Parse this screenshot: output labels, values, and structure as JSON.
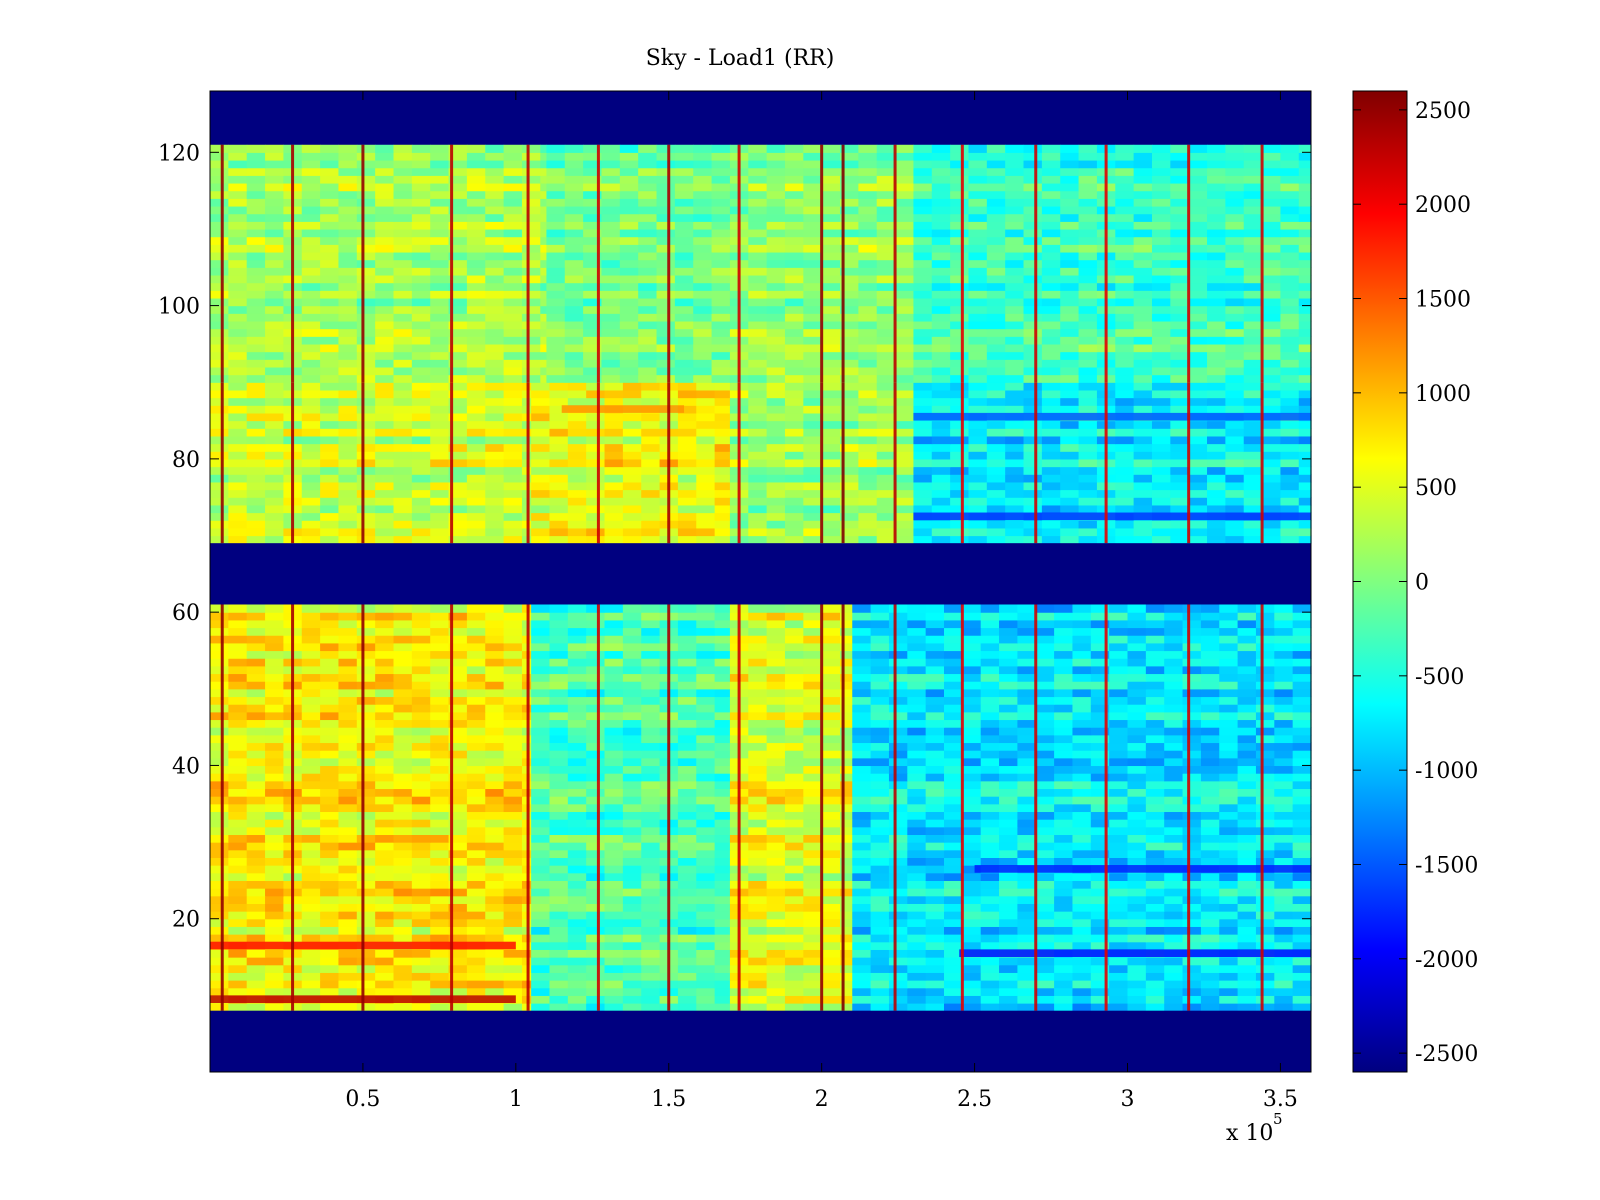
{
  "chart_data": {
    "type": "heatmap",
    "title": "Sky - Load1 (RR)",
    "xlabel": "",
    "ylabel": "",
    "x_exponent_label": "x 10",
    "x_exponent_power": "5",
    "xlim": [
      0,
      360000
    ],
    "ylim": [
      0,
      128
    ],
    "x_ticks": [
      50000,
      100000,
      150000,
      200000,
      250000,
      300000,
      350000
    ],
    "x_tick_labels": [
      "0.5",
      "1",
      "1.5",
      "2",
      "2.5",
      "3",
      "3.5"
    ],
    "y_ticks": [
      20,
      40,
      60,
      80,
      100,
      120
    ],
    "y_tick_labels": [
      "20",
      "40",
      "60",
      "80",
      "100",
      "120"
    ],
    "colormap": "jet",
    "clim": [
      -2600,
      2600
    ],
    "colorbar_ticks": [
      2500,
      2000,
      1500,
      1000,
      500,
      0,
      -500,
      -1000,
      -1500,
      -2000,
      -2500
    ],
    "colorbar_tick_labels": [
      "2500",
      "2000",
      "1500",
      "1000",
      "500",
      "0",
      "-500",
      "-1000",
      "-1500",
      "-2000",
      "-2500"
    ],
    "masked_rows": [
      [
        0,
        8
      ],
      [
        61,
        69
      ],
      [
        121,
        128
      ]
    ],
    "masked_value": -2600,
    "row_bands": [
      {
        "rows": [
          8,
          61
        ],
        "x_segments": [
          {
            "x": [
              0,
              105000
            ],
            "mean": 700
          },
          {
            "x": [
              105000,
              170000
            ],
            "mean": -250
          },
          {
            "x": [
              170000,
              210000
            ],
            "mean": 500
          },
          {
            "x": [
              210000,
              360000
            ],
            "mean": -750
          }
        ]
      },
      {
        "rows": [
          69,
          90
        ],
        "x_segments": [
          {
            "x": [
              0,
              105000
            ],
            "mean": 400
          },
          {
            "x": [
              105000,
              170000
            ],
            "mean": 600
          },
          {
            "x": [
              170000,
              230000
            ],
            "mean": 150
          },
          {
            "x": [
              230000,
              360000
            ],
            "mean": -700
          }
        ]
      },
      {
        "rows": [
          90,
          121
        ],
        "x_segments": [
          {
            "x": [
              0,
              110000
            ],
            "mean": 200
          },
          {
            "x": [
              110000,
              170000
            ],
            "mean": -50
          },
          {
            "x": [
              170000,
              230000
            ],
            "mean": 100
          },
          {
            "x": [
              230000,
              360000
            ],
            "mean": -350
          }
        ]
      }
    ],
    "vertical_streaks": [
      {
        "x": 4000,
        "value": 2500
      },
      {
        "x": 27000,
        "value": 2400
      },
      {
        "x": 50000,
        "value": 2500
      },
      {
        "x": 79000,
        "value": 2300
      },
      {
        "x": 104000,
        "value": 2300
      },
      {
        "x": 127000,
        "value": 2200
      },
      {
        "x": 150000,
        "value": 2400
      },
      {
        "x": 173000,
        "value": 2200
      },
      {
        "x": 200000,
        "value": 2500
      },
      {
        "x": 207000,
        "value": 2600
      },
      {
        "x": 224000,
        "value": 2300
      },
      {
        "x": 246000,
        "value": 2100
      },
      {
        "x": 270000,
        "value": 2200
      },
      {
        "x": 293000,
        "value": 2100
      },
      {
        "x": 320000,
        "value": 2200
      },
      {
        "x": 344000,
        "value": 2200
      }
    ],
    "horizontal_streaks": [
      {
        "row": 9,
        "x": [
          0,
          100000
        ],
        "value": 2300
      },
      {
        "row": 16,
        "x": [
          0,
          100000
        ],
        "value": 1900
      },
      {
        "row": 15,
        "x": [
          245000,
          360000
        ],
        "value": -1900
      },
      {
        "row": 26,
        "x": [
          250000,
          360000
        ],
        "value": -1800
      },
      {
        "row": 72,
        "x": [
          230000,
          360000
        ],
        "value": -1700
      },
      {
        "row": 85,
        "x": [
          230000,
          360000
        ],
        "value": -1500
      },
      {
        "row": 86,
        "x": [
          115000,
          155000
        ],
        "value": 1200
      }
    ]
  }
}
